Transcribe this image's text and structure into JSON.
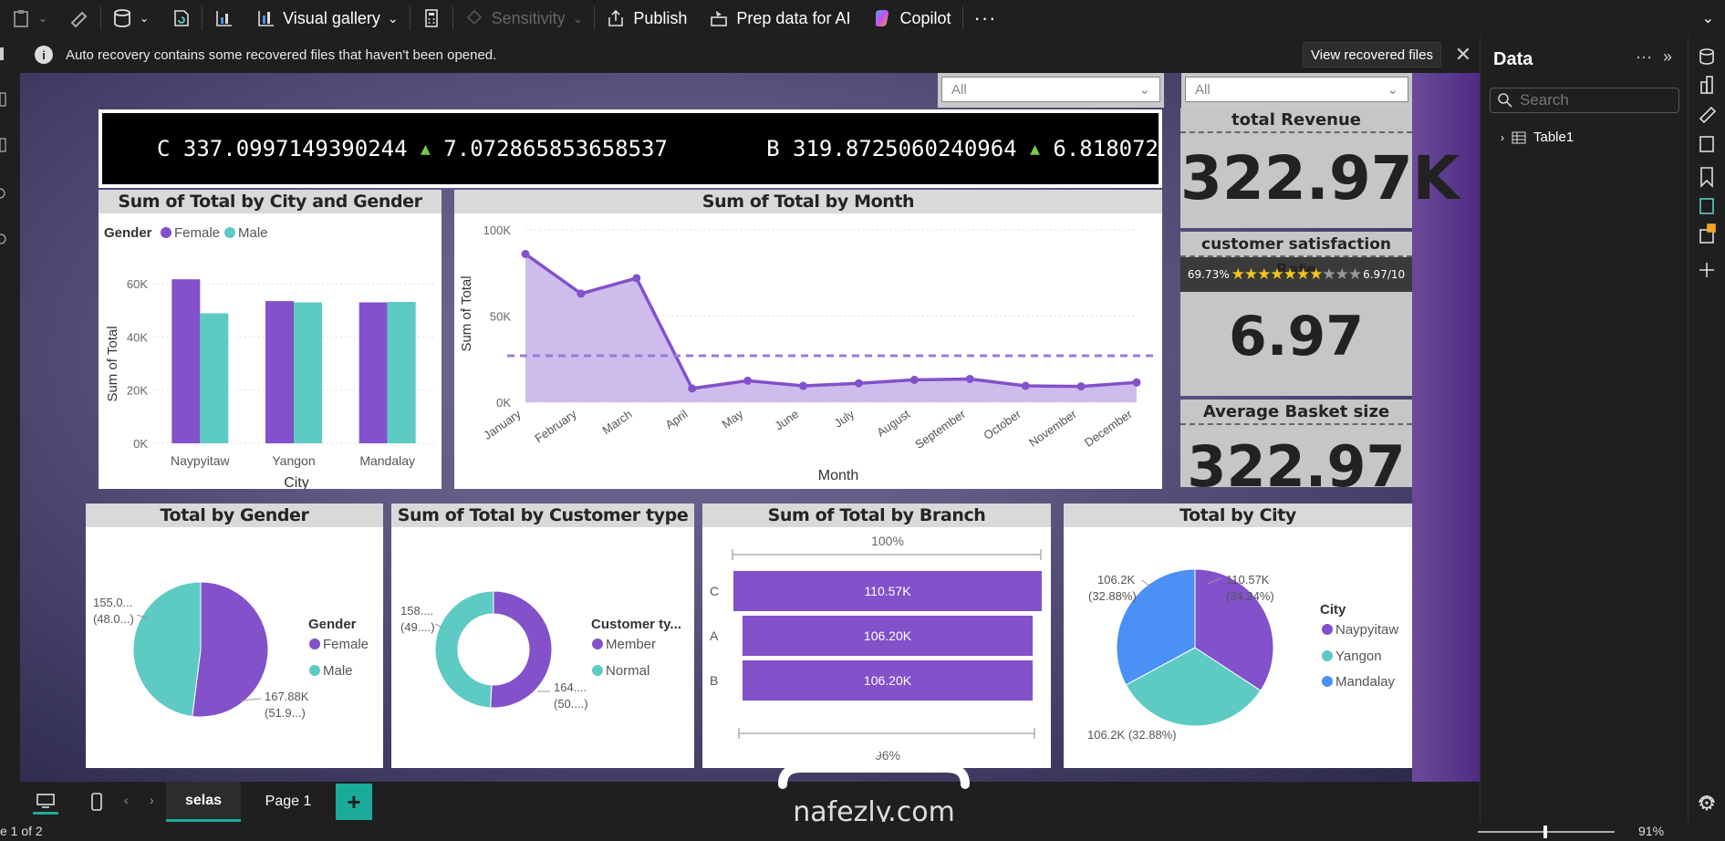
{
  "toolbar": {
    "visual_gallery": "Visual gallery",
    "sensitivity": "Sensitivity",
    "publish": "Publish",
    "prep_data": "Prep data for AI",
    "copilot": "Copilot",
    "more": "···"
  },
  "banner": {
    "message": "Auto recovery contains some recovered files that haven't been opened.",
    "view_button": "View recovered files"
  },
  "slicers": [
    {
      "value": "All"
    },
    {
      "value": "All"
    }
  ],
  "ticker": {
    "items": [
      {
        "branch": "C",
        "value": "337.0997149390244",
        "change": "7.072865853658537"
      },
      {
        "branch": "B",
        "value": "319.8725060240964",
        "change": "6.818072"
      }
    ],
    "up_arrow": "▲"
  },
  "kpis": {
    "revenue": {
      "title": "total Revenue",
      "value": "322.97K"
    },
    "satisfaction": {
      "title": "customer satisfaction Rate",
      "value": "6.97",
      "percent_label": "69.73%",
      "score_label": "6.97/10",
      "stars_filled": 7,
      "stars_total": 10
    },
    "basket": {
      "title": "Average Basket size",
      "value": "322.97"
    }
  },
  "charts": {
    "city_gender": {
      "title": "Sum of Total by City and Gender",
      "legend_title": "Gender",
      "legend_female": "Female",
      "legend_male": "Male",
      "ylabel": "Sum of Total",
      "xlabel": "City"
    },
    "month": {
      "title": "Sum of Total by Month",
      "ylabel": "Sum of Total",
      "xlabel": "Month"
    },
    "gender": {
      "title": "Total by Gender",
      "legend_title": "Gender",
      "legend_female": "Female",
      "legend_male": "Male",
      "label_male": "155.0...",
      "label_male_pct": "(48.0...)",
      "label_female": "167.88K",
      "label_female_pct": "(51.9...)"
    },
    "customer": {
      "title": "Sum of Total by Customer type",
      "legend_title": "Customer ty...",
      "legend_member": "Member",
      "legend_normal": "Normal",
      "label_normal": "158....",
      "label_normal_pct": "(49....)",
      "label_member": "164....",
      "label_member_pct": "(50....)"
    },
    "branch": {
      "title": "Sum of Total by Branch",
      "top_label": "100%",
      "bottom_label": "96%"
    },
    "city": {
      "title": "Total by City",
      "legend_title": "City",
      "legend_1": "Naypyitaw",
      "legend_2": "Yangon",
      "legend_3": "Mandalay",
      "label_naypyitaw": "110.57K",
      "label_naypyitaw_pct": "(34.24%)",
      "label_mandalay": "106.2K",
      "label_mandalay_pct": "(32.88%)",
      "label_yangon": "106.2K (32.88%)"
    }
  },
  "colors": {
    "female": "#8351c9",
    "male": "#5ecac4",
    "mandalay": "#4a90f5",
    "accent": "#1aab9b"
  },
  "chart_data": [
    {
      "type": "bar",
      "title": "Sum of Total by City and Gender",
      "xlabel": "City",
      "ylabel": "Sum of Total",
      "categories": [
        "Naypyitaw",
        "Yangon",
        "Mandalay"
      ],
      "series": [
        {
          "name": "Female",
          "values": [
            61700,
            53500,
            53000
          ]
        },
        {
          "name": "Male",
          "values": [
            48900,
            53000,
            53200
          ]
        }
      ],
      "yticks": [
        "0K",
        "20K",
        "40K",
        "60K"
      ],
      "ylim": [
        0,
        70000
      ],
      "legend": "top-left"
    },
    {
      "type": "area",
      "title": "Sum of Total by Month",
      "xlabel": "Month",
      "ylabel": "Sum of Total",
      "categories": [
        "January",
        "February",
        "March",
        "April",
        "May",
        "June",
        "July",
        "August",
        "September",
        "October",
        "November",
        "December"
      ],
      "values": [
        86000,
        63000,
        72000,
        8000,
        12500,
        9500,
        11000,
        13000,
        13500,
        9500,
        9200,
        11500
      ],
      "average": 27000,
      "yticks": [
        "0K",
        "50K",
        "100K"
      ],
      "ylim": [
        0,
        100000
      ]
    },
    {
      "type": "pie",
      "title": "Total by Gender",
      "labels": [
        "Female",
        "Male"
      ],
      "values": [
        167.88,
        155.0
      ]
    },
    {
      "type": "pie",
      "title": "Sum of Total by Customer type",
      "labels": [
        "Member",
        "Normal"
      ],
      "values": [
        164.2,
        158.8
      ],
      "donut": true
    },
    {
      "type": "bar",
      "title": "Sum of Total by Branch",
      "orientation": "horizontal",
      "categories": [
        "C",
        "A",
        "B"
      ],
      "values": [
        110.57,
        106.2,
        106.2
      ],
      "value_labels": [
        "110.57K",
        "106.20K",
        "106.20K"
      ]
    },
    {
      "type": "pie",
      "title": "Total by City",
      "labels": [
        "Naypyitaw",
        "Yangon",
        "Mandalay"
      ],
      "values": [
        110.57,
        106.2,
        106.2
      ]
    }
  ],
  "data_panel": {
    "title": "Data",
    "search_placeholder": "Search",
    "table": "Table1"
  },
  "pages": {
    "tabs": [
      "selas",
      "Page 1"
    ],
    "active": "selas",
    "add": "+"
  },
  "status": {
    "page": "e 1 of 2",
    "zoom": "91%"
  },
  "watermark": {
    "text": "nafezly.com"
  }
}
